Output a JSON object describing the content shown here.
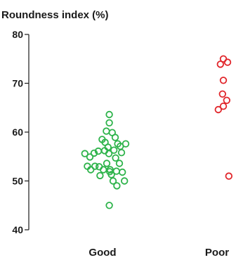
{
  "chart_data": {
    "type": "scatter",
    "title": "",
    "ylabel": "Roundness index (%)",
    "xlabel": "",
    "ylim": [
      40,
      80
    ],
    "yticks": [
      40,
      50,
      60,
      70,
      80
    ],
    "categories": [
      "Good",
      "Poor"
    ],
    "grid": false,
    "series": [
      {
        "category": "Good",
        "color": "#2db34a",
        "points": [
          {
            "offset": -0.42,
            "y": 55.6
          },
          {
            "offset": -0.36,
            "y": 53.0
          },
          {
            "offset": -0.3,
            "y": 54.9
          },
          {
            "offset": -0.28,
            "y": 52.3
          },
          {
            "offset": -0.2,
            "y": 55.7
          },
          {
            "offset": -0.18,
            "y": 53.0
          },
          {
            "offset": -0.1,
            "y": 56.1
          },
          {
            "offset": -0.08,
            "y": 52.9
          },
          {
            "offset": -0.06,
            "y": 51.1
          },
          {
            "offset": -0.01,
            "y": 58.5
          },
          {
            "offset": 0.02,
            "y": 52.3
          },
          {
            "offset": 0.05,
            "y": 56.2
          },
          {
            "offset": 0.06,
            "y": 57.9
          },
          {
            "offset": 0.09,
            "y": 60.2
          },
          {
            "offset": 0.1,
            "y": 53.6
          },
          {
            "offset": 0.13,
            "y": 56.9
          },
          {
            "offset": 0.15,
            "y": 55.6
          },
          {
            "offset": 0.16,
            "y": 61.9
          },
          {
            "offset": 0.16,
            "y": 63.6
          },
          {
            "offset": 0.18,
            "y": 52.3
          },
          {
            "offset": 0.17,
            "y": 51.9
          },
          {
            "offset": 0.16,
            "y": 45.0
          },
          {
            "offset": 0.21,
            "y": 51.3
          },
          {
            "offset": 0.23,
            "y": 59.9
          },
          {
            "offset": 0.25,
            "y": 50.0
          },
          {
            "offset": 0.27,
            "y": 56.3
          },
          {
            "offset": 0.3,
            "y": 58.9
          },
          {
            "offset": 0.31,
            "y": 54.7
          },
          {
            "offset": 0.33,
            "y": 52.0
          },
          {
            "offset": 0.34,
            "y": 49.0
          },
          {
            "offset": 0.36,
            "y": 57.6
          },
          {
            "offset": 0.4,
            "y": 53.6
          },
          {
            "offset": 0.42,
            "y": 57.1
          },
          {
            "offset": 0.45,
            "y": 55.8
          },
          {
            "offset": 0.47,
            "y": 51.8
          },
          {
            "offset": 0.52,
            "y": 50.0
          },
          {
            "offset": 0.55,
            "y": 57.6
          }
        ]
      },
      {
        "category": "Poor",
        "color": "#e1262b",
        "points": [
          {
            "offset": 0.15,
            "y": 75.0
          },
          {
            "offset": 0.08,
            "y": 73.9
          },
          {
            "offset": 0.25,
            "y": 74.3
          },
          {
            "offset": 0.15,
            "y": 70.6
          },
          {
            "offset": 0.13,
            "y": 67.8
          },
          {
            "offset": 0.23,
            "y": 66.5
          },
          {
            "offset": 0.15,
            "y": 65.3
          },
          {
            "offset": 0.03,
            "y": 64.6
          },
          {
            "offset": 0.28,
            "y": 51.0
          }
        ]
      }
    ]
  }
}
